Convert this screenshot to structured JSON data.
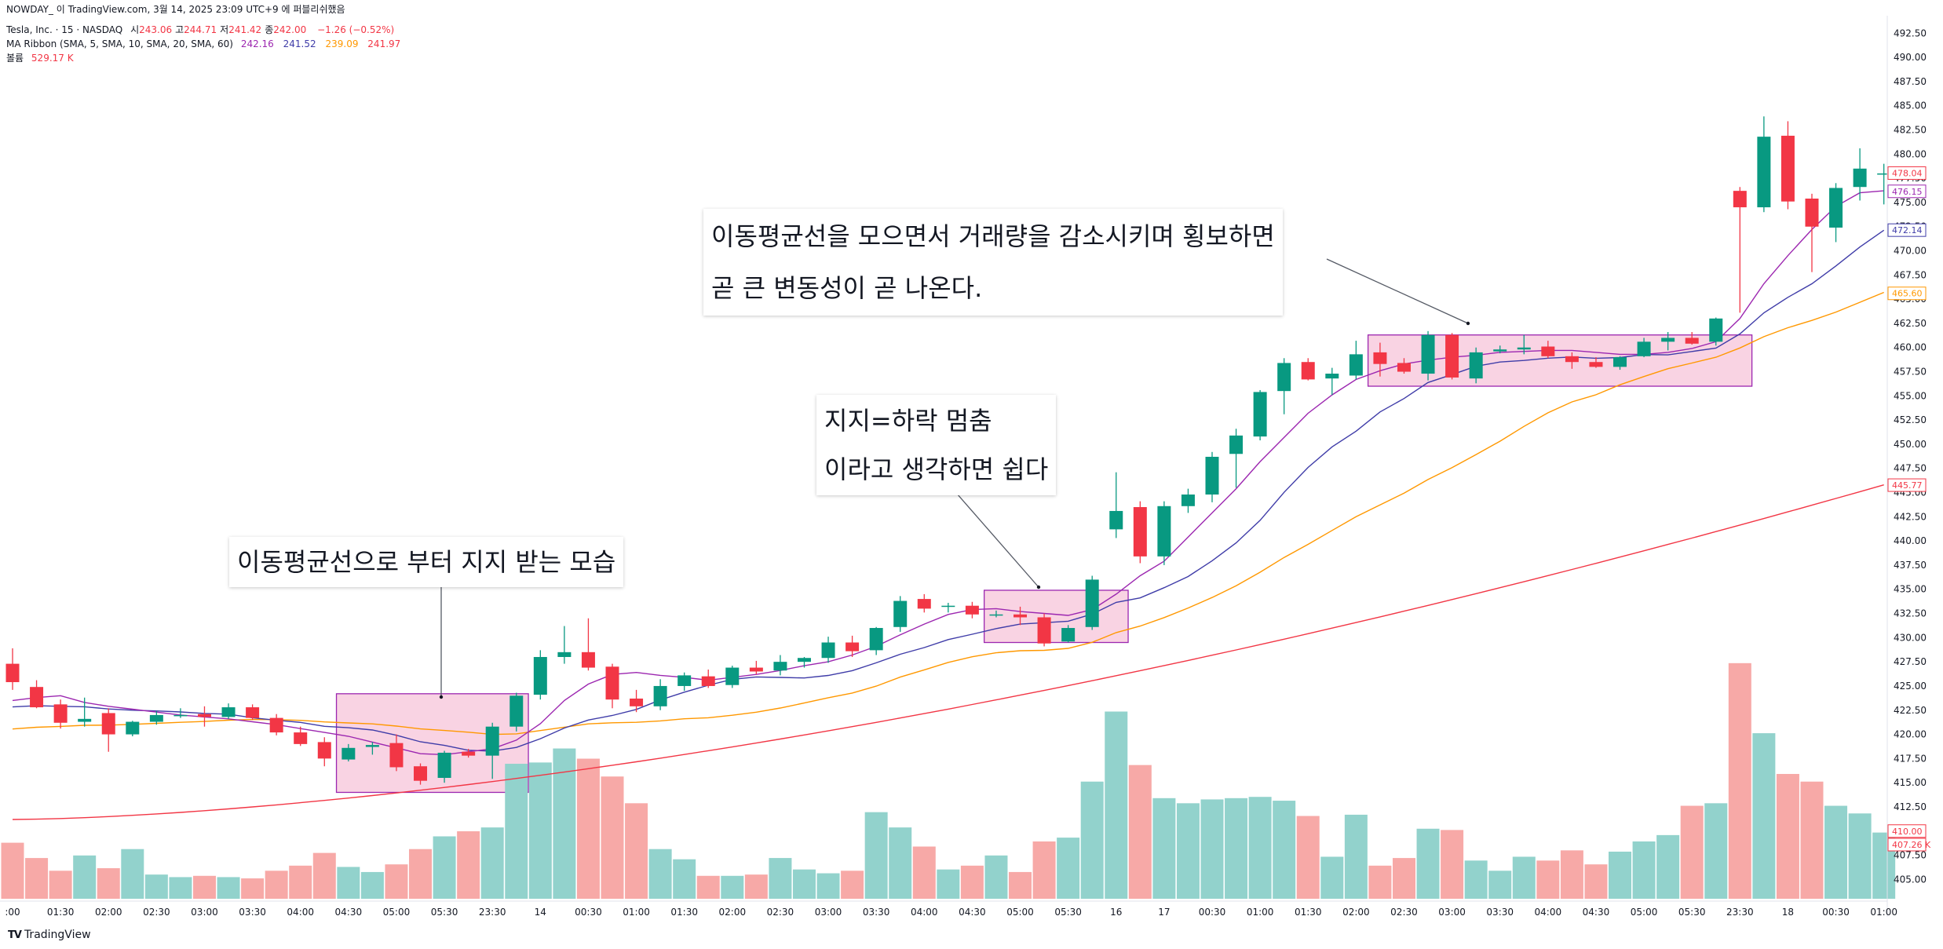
{
  "header": {
    "top_line": "NOWDAY_ 이 TradingView.com, 3월 14, 2025 23:09 UTC+9 에 퍼블리쉬했음",
    "symbol": "Tesla, Inc. · 15 · NASDAQ",
    "ohlc": [
      {
        "label": "시",
        "value": "243.06"
      },
      {
        "label": "고",
        "value": "244.71"
      },
      {
        "label": "저",
        "value": "241.42"
      },
      {
        "label": "종",
        "value": "242.00"
      }
    ],
    "change": "−1.26 (−0.52%)",
    "ribbon_label": "MA Ribbon (SMA, 5, SMA, 10, SMA, 20, SMA, 60)",
    "ribbon_values": [
      "242.16",
      "241.52",
      "239.09",
      "241.97"
    ],
    "volume_label": "볼륨",
    "volume_value": "529.17 K"
  },
  "annotations": {
    "a1": [
      "이동평균선으로 부터 지지 받는 모습"
    ],
    "a2": [
      "지지=하락 멈춤",
      "이라고 생각하면 쉽다"
    ],
    "a3": [
      "이동평균선을 모으면서 거래량을 감소시키며 횡보하면",
      "곧 큰 변동성이 곧 나온다."
    ]
  },
  "footer": {
    "logo": "TradingView"
  },
  "colors": {
    "up": "#089981",
    "down": "#f23645",
    "vol_up": "#92d2cc",
    "vol_down": "#f7a9a7",
    "ma5": "#9c27b0",
    "ma10": "#3f3ca8",
    "ma20": "#ff9800",
    "ma60": "#f23645",
    "box_fill": "#f8c8dc",
    "box_stroke": "#9c27b0"
  },
  "chart_data": {
    "type": "candlestick",
    "price_axis": {
      "min": 403.0,
      "max": 493.5,
      "ticks": [
        "405.00",
        "407.50",
        "410.00",
        "412.50",
        "415.00",
        "417.50",
        "420.00",
        "422.50",
        "425.00",
        "427.50",
        "430.00",
        "432.50",
        "435.00",
        "437.50",
        "440.00",
        "442.50",
        "445.00",
        "447.50",
        "450.00",
        "452.50",
        "455.00",
        "457.50",
        "460.00",
        "462.50",
        "465.00",
        "467.50",
        "470.00",
        "472.50",
        "475.00",
        "477.50",
        "480.00",
        "482.50",
        "485.00",
        "487.50",
        "490.00",
        "492.50"
      ],
      "badges": [
        {
          "value": "478.04",
          "color": "#f23645",
          "price": 478.04
        },
        {
          "value": "476.15",
          "color": "#9c27b0",
          "price": 476.15
        },
        {
          "value": "472.14",
          "color": "#3f3ca8",
          "price": 472.14
        },
        {
          "value": "465.60",
          "color": "#ff9800",
          "price": 465.6
        },
        {
          "value": "445.77",
          "color": "#f23645",
          "price": 445.77
        },
        {
          "value": "410.00",
          "color": "#f23645",
          "price": 410.0
        },
        {
          "value": "407.26 K",
          "color": "#f23645",
          "price": 408.6
        }
      ]
    },
    "time_axis": [
      {
        "label": ":00",
        "i": 0
      },
      {
        "label": "01:30",
        "i": 2
      },
      {
        "label": "02:00",
        "i": 4
      },
      {
        "label": "02:30",
        "i": 6
      },
      {
        "label": "03:00",
        "i": 8
      },
      {
        "label": "03:30",
        "i": 10
      },
      {
        "label": "04:00",
        "i": 12
      },
      {
        "label": "04:30",
        "i": 14
      },
      {
        "label": "05:00",
        "i": 16
      },
      {
        "label": "05:30",
        "i": 18
      },
      {
        "label": "23:30",
        "i": 20
      },
      {
        "label": "14",
        "i": 22
      },
      {
        "label": "00:30",
        "i": 24
      },
      {
        "label": "01:00",
        "i": 26
      },
      {
        "label": "01:30",
        "i": 28
      },
      {
        "label": "02:00",
        "i": 30
      },
      {
        "label": "02:30",
        "i": 32
      },
      {
        "label": "03:00",
        "i": 34
      },
      {
        "label": "03:30",
        "i": 36
      },
      {
        "label": "04:00",
        "i": 38
      },
      {
        "label": "04:30",
        "i": 40
      },
      {
        "label": "05:00",
        "i": 42
      },
      {
        "label": "05:30",
        "i": 44
      },
      {
        "label": "16",
        "i": 46
      },
      {
        "label": "17",
        "i": 48
      },
      {
        "label": "00:30",
        "i": 50
      },
      {
        "label": "01:00",
        "i": 52
      },
      {
        "label": "01:30",
        "i": 54
      },
      {
        "label": "02:00",
        "i": 56
      },
      {
        "label": "02:30",
        "i": 58
      },
      {
        "label": "03:00",
        "i": 60
      },
      {
        "label": "03:30",
        "i": 62
      },
      {
        "label": "04:00",
        "i": 64
      },
      {
        "label": "04:30",
        "i": 66
      },
      {
        "label": "05:00",
        "i": 68
      },
      {
        "label": "05:30",
        "i": 70
      },
      {
        "label": "23:30",
        "i": 72
      },
      {
        "label": "18",
        "i": 74
      },
      {
        "label": "00:30",
        "i": 76
      },
      {
        "label": "01:00",
        "i": 78
      }
    ],
    "candles": [
      {
        "o": 427.3,
        "h": 428.9,
        "l": 424.6,
        "c": 425.4,
        "v": 0.44
      },
      {
        "o": 424.9,
        "h": 425.6,
        "l": 422.7,
        "c": 422.8,
        "v": 0.32
      },
      {
        "o": 423.1,
        "h": 423.6,
        "l": 420.6,
        "c": 421.2,
        "v": 0.22
      },
      {
        "o": 421.3,
        "h": 423.8,
        "l": 420.8,
        "c": 421.6,
        "v": 0.34
      },
      {
        "o": 422.2,
        "h": 422.7,
        "l": 418.2,
        "c": 420.0,
        "v": 0.24
      },
      {
        "o": 420.0,
        "h": 421.4,
        "l": 419.8,
        "c": 421.3,
        "v": 0.39
      },
      {
        "o": 421.3,
        "h": 422.4,
        "l": 421.0,
        "c": 422.0,
        "v": 0.19
      },
      {
        "o": 422.0,
        "h": 422.7,
        "l": 421.7,
        "c": 422.0,
        "v": 0.17
      },
      {
        "o": 422.1,
        "h": 422.9,
        "l": 420.8,
        "c": 421.8,
        "v": 0.18
      },
      {
        "o": 421.8,
        "h": 423.2,
        "l": 421.6,
        "c": 422.8,
        "v": 0.17
      },
      {
        "o": 422.8,
        "h": 423.1,
        "l": 421.5,
        "c": 421.7,
        "v": 0.16
      },
      {
        "o": 421.7,
        "h": 422.1,
        "l": 419.9,
        "c": 420.2,
        "v": 0.22
      },
      {
        "o": 420.2,
        "h": 420.8,
        "l": 418.8,
        "c": 419.0,
        "v": 0.26
      },
      {
        "o": 419.2,
        "h": 419.7,
        "l": 416.7,
        "c": 417.5,
        "v": 0.36
      },
      {
        "o": 417.4,
        "h": 419.0,
        "l": 417.2,
        "c": 418.6,
        "v": 0.25
      },
      {
        "o": 418.7,
        "h": 419.2,
        "l": 417.9,
        "c": 418.9,
        "v": 0.21
      },
      {
        "o": 419.1,
        "h": 420.0,
        "l": 416.2,
        "c": 416.6,
        "v": 0.27
      },
      {
        "o": 416.7,
        "h": 417.0,
        "l": 414.8,
        "c": 415.2,
        "v": 0.39
      },
      {
        "o": 415.5,
        "h": 418.3,
        "l": 415.0,
        "c": 418.1,
        "v": 0.49
      },
      {
        "o": 418.2,
        "h": 418.5,
        "l": 417.6,
        "c": 417.8,
        "v": 0.53
      },
      {
        "o": 417.8,
        "h": 421.2,
        "l": 415.4,
        "c": 420.8,
        "v": 0.56
      },
      {
        "o": 420.8,
        "h": 424.3,
        "l": 420.3,
        "c": 424.0,
        "v": 1.06
      },
      {
        "o": 424.1,
        "h": 428.7,
        "l": 423.6,
        "c": 428.0,
        "v": 1.07
      },
      {
        "o": 428.0,
        "h": 431.2,
        "l": 427.3,
        "c": 428.5,
        "v": 1.18
      },
      {
        "o": 428.5,
        "h": 432.0,
        "l": 426.6,
        "c": 426.9,
        "v": 1.1
      },
      {
        "o": 427.0,
        "h": 427.3,
        "l": 422.7,
        "c": 423.6,
        "v": 0.96
      },
      {
        "o": 423.7,
        "h": 424.6,
        "l": 422.3,
        "c": 422.9,
        "v": 0.75
      },
      {
        "o": 422.9,
        "h": 425.7,
        "l": 422.5,
        "c": 425.0,
        "v": 0.39
      },
      {
        "o": 425.0,
        "h": 426.4,
        "l": 424.5,
        "c": 426.1,
        "v": 0.31
      },
      {
        "o": 426.0,
        "h": 426.7,
        "l": 424.8,
        "c": 425.0,
        "v": 0.18
      },
      {
        "o": 425.1,
        "h": 427.1,
        "l": 424.8,
        "c": 426.9,
        "v": 0.18
      },
      {
        "o": 426.9,
        "h": 427.6,
        "l": 426.2,
        "c": 426.5,
        "v": 0.19
      },
      {
        "o": 426.6,
        "h": 428.2,
        "l": 426.1,
        "c": 427.5,
        "v": 0.32
      },
      {
        "o": 427.5,
        "h": 428.0,
        "l": 426.9,
        "c": 427.9,
        "v": 0.23
      },
      {
        "o": 427.9,
        "h": 430.1,
        "l": 427.4,
        "c": 429.5,
        "v": 0.2
      },
      {
        "o": 429.5,
        "h": 430.2,
        "l": 428.0,
        "c": 428.6,
        "v": 0.22
      },
      {
        "o": 428.7,
        "h": 431.1,
        "l": 428.2,
        "c": 431.0,
        "v": 0.68
      },
      {
        "o": 431.1,
        "h": 434.3,
        "l": 430.6,
        "c": 433.8,
        "v": 0.56
      },
      {
        "o": 434.0,
        "h": 434.5,
        "l": 432.6,
        "c": 433.0,
        "v": 0.41
      },
      {
        "o": 433.2,
        "h": 433.6,
        "l": 432.6,
        "c": 433.3,
        "v": 0.23
      },
      {
        "o": 433.3,
        "h": 433.7,
        "l": 432.0,
        "c": 432.4,
        "v": 0.26
      },
      {
        "o": 432.3,
        "h": 432.8,
        "l": 432.1,
        "c": 432.4,
        "v": 0.34
      },
      {
        "o": 432.4,
        "h": 433.2,
        "l": 431.3,
        "c": 432.1,
        "v": 0.21
      },
      {
        "o": 432.1,
        "h": 432.5,
        "l": 429.1,
        "c": 429.4,
        "v": 0.45
      },
      {
        "o": 429.6,
        "h": 431.3,
        "l": 429.5,
        "c": 431.0,
        "v": 0.48
      },
      {
        "o": 431.1,
        "h": 436.4,
        "l": 430.8,
        "c": 436.0,
        "v": 0.92
      },
      {
        "o": 441.2,
        "h": 447.1,
        "l": 440.3,
        "c": 443.1,
        "v": 1.47
      },
      {
        "o": 443.5,
        "h": 444.1,
        "l": 437.7,
        "c": 438.4,
        "v": 1.05
      },
      {
        "o": 438.4,
        "h": 444.1,
        "l": 437.5,
        "c": 443.6,
        "v": 0.79
      },
      {
        "o": 443.6,
        "h": 445.4,
        "l": 442.9,
        "c": 444.8,
        "v": 0.75
      },
      {
        "o": 444.8,
        "h": 449.2,
        "l": 444.0,
        "c": 448.7,
        "v": 0.78
      },
      {
        "o": 449.0,
        "h": 451.6,
        "l": 445.5,
        "c": 450.9,
        "v": 0.79
      },
      {
        "o": 450.8,
        "h": 455.6,
        "l": 450.4,
        "c": 455.4,
        "v": 0.8
      },
      {
        "o": 455.5,
        "h": 458.9,
        "l": 453.1,
        "c": 458.4,
        "v": 0.77
      },
      {
        "o": 458.5,
        "h": 458.9,
        "l": 456.6,
        "c": 456.7,
        "v": 0.65
      },
      {
        "o": 456.8,
        "h": 457.9,
        "l": 455.1,
        "c": 457.3,
        "v": 0.33
      },
      {
        "o": 457.1,
        "h": 460.7,
        "l": 456.7,
        "c": 459.3,
        "v": 0.66
      },
      {
        "o": 459.5,
        "h": 460.5,
        "l": 457.0,
        "c": 458.3,
        "v": 0.26
      },
      {
        "o": 458.4,
        "h": 458.9,
        "l": 457.3,
        "c": 457.5,
        "v": 0.32
      },
      {
        "o": 457.3,
        "h": 461.7,
        "l": 456.6,
        "c": 461.3,
        "v": 0.55
      },
      {
        "o": 461.3,
        "h": 461.5,
        "l": 456.7,
        "c": 456.9,
        "v": 0.54
      },
      {
        "o": 456.8,
        "h": 460.0,
        "l": 456.3,
        "c": 459.5,
        "v": 0.3
      },
      {
        "o": 459.6,
        "h": 460.2,
        "l": 459.4,
        "c": 459.8,
        "v": 0.22
      },
      {
        "o": 459.8,
        "h": 461.3,
        "l": 459.3,
        "c": 460.0,
        "v": 0.33
      },
      {
        "o": 460.1,
        "h": 460.7,
        "l": 458.9,
        "c": 459.1,
        "v": 0.3
      },
      {
        "o": 459.1,
        "h": 459.5,
        "l": 457.8,
        "c": 458.5,
        "v": 0.38
      },
      {
        "o": 458.5,
        "h": 459.0,
        "l": 457.9,
        "c": 458.0,
        "v": 0.27
      },
      {
        "o": 458.0,
        "h": 459.1,
        "l": 457.7,
        "c": 459.0,
        "v": 0.37
      },
      {
        "o": 459.1,
        "h": 461.0,
        "l": 459.0,
        "c": 460.6,
        "v": 0.45
      },
      {
        "o": 460.6,
        "h": 461.6,
        "l": 459.7,
        "c": 461.0,
        "v": 0.5
      },
      {
        "o": 461.0,
        "h": 461.6,
        "l": 460.3,
        "c": 460.4,
        "v": 0.73
      },
      {
        "o": 460.6,
        "h": 463.1,
        "l": 460.2,
        "c": 463.0,
        "v": 0.75
      },
      {
        "o": 476.2,
        "h": 476.6,
        "l": 463.6,
        "c": 474.5,
        "v": 1.85
      },
      {
        "o": 474.5,
        "h": 483.9,
        "l": 474.0,
        "c": 481.8,
        "v": 1.3
      },
      {
        "o": 481.9,
        "h": 483.4,
        "l": 474.3,
        "c": 475.1,
        "v": 0.98
      },
      {
        "o": 475.4,
        "h": 475.9,
        "l": 467.8,
        "c": 472.5,
        "v": 0.92
      },
      {
        "o": 472.4,
        "h": 477.0,
        "l": 470.9,
        "c": 476.5,
        "v": 0.73
      },
      {
        "o": 476.6,
        "h": 480.6,
        "l": 475.2,
        "c": 478.5,
        "v": 0.67
      },
      {
        "o": 478.0,
        "h": 479.0,
        "l": 474.8,
        "c": 478.0,
        "v": 0.52
      }
    ],
    "ma5": [
      423.5,
      423.8,
      424.0,
      423.3,
      422.9,
      422.6,
      422.3,
      422.0,
      421.8,
      421.6,
      421.3,
      421.0,
      420.6,
      420.2,
      419.8,
      419.2,
      418.6,
      418.0,
      417.9,
      418.2,
      418.5,
      419.4,
      421.1,
      423.5,
      425.2,
      426.2,
      426.4,
      426.1,
      425.9,
      425.6,
      425.9,
      426.2,
      426.6,
      427.1,
      427.5,
      428.2,
      429.1,
      430.3,
      431.4,
      432.4,
      432.9,
      433.0,
      432.7,
      432.5,
      432.3,
      432.9,
      434.5,
      436.4,
      437.9,
      440.4,
      442.9,
      445.4,
      448.2,
      450.7,
      453.2,
      455.1,
      456.7,
      457.6,
      458.3,
      458.7,
      459.0,
      459.2,
      459.5,
      459.6,
      459.7,
      459.7,
      459.5,
      459.3,
      459.3,
      459.5,
      459.9,
      460.6,
      463.0,
      466.6,
      469.5,
      472.2,
      474.6,
      476.0,
      476.2
    ]
  }
}
